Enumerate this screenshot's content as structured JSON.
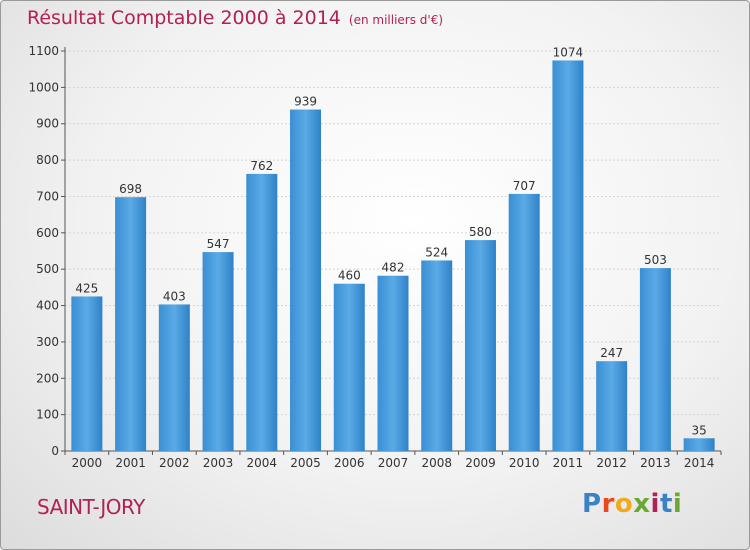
{
  "chart_data": {
    "type": "bar",
    "title": "Résultat Comptable 2000 à 2014",
    "unit": "(en milliers d'€)",
    "categories": [
      "2000",
      "2001",
      "2002",
      "2003",
      "2004",
      "2005",
      "2006",
      "2007",
      "2008",
      "2009",
      "2010",
      "2011",
      "2012",
      "2013",
      "2014"
    ],
    "values": [
      425,
      698,
      403,
      547,
      762,
      939,
      460,
      482,
      524,
      580,
      707,
      1074,
      247,
      503,
      35
    ],
    "ylim": [
      0,
      1100
    ],
    "yticks": [
      0,
      100,
      200,
      300,
      400,
      500,
      600,
      700,
      800,
      900,
      1000,
      1100
    ],
    "grid": true,
    "bar_color": "#3f95d8",
    "text_color": "#b32056"
  },
  "location": "SAINT-JORY",
  "brand": {
    "text": "Proxiti",
    "colors": [
      "#3a82c4",
      "#e8491d",
      "#f4a81c",
      "#6aa833",
      "#b32056",
      "#3a82c4",
      "#6aa833"
    ]
  }
}
